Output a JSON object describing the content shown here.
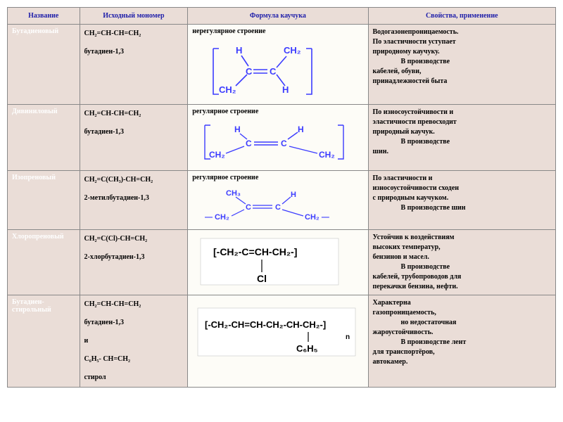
{
  "headers": {
    "c1": "Название",
    "c2": "Исходный мономер",
    "c3": "Формула каучука",
    "c4": "Свойства, применение"
  },
  "col_widths": {
    "c1": 100,
    "c2": 150,
    "c3": 250,
    "c4": 260
  },
  "colors": {
    "header_bg": "#eaddd7",
    "header_fg": "#2020aa",
    "name_fg": "#fefefe",
    "cell_bg": "#eaddd7",
    "formula_bg": "#fdfcf7",
    "border": "#888888",
    "svg_blue": "#3b3bff",
    "svg_black": "#000000"
  },
  "rows": [
    {
      "name": "Бутадиеновый",
      "monomer_formula": "CH₂=CH-CH=CH₂",
      "monomer_name": "бутадиен-1,3",
      "structure_label": "нерегулярное строение",
      "svg_kind": "butadiene_irregular",
      "props_line1": "Водогазонепроницаемость.",
      "props_line2": "По эластичности уступает",
      "props_line3": "природному каучуку.",
      "props_line4": "В производстве",
      "props_line5": "кабелей, обуви,",
      "props_line6": "принадлежностей быта"
    },
    {
      "name": "Дивиниловый",
      "monomer_formula": "CH₂=CH-CH=CH₂",
      "monomer_name": "бутадиен-1,3",
      "structure_label": "регулярное строение",
      "svg_kind": "divinyl_regular",
      "props_line1": "По износоустойчивости и",
      "props_line2": "эластичности превосходит",
      "props_line3": "природный каучук.",
      "props_line4": "В производстве",
      "props_line5": "шин.",
      "props_line6": ""
    },
    {
      "name": "Изопреновый",
      "monomer_formula": "CH₂=C(CH₃)-CH=CH₂",
      "monomer_name": "2-метилбутадиен-1,3",
      "structure_label": "регулярное строение",
      "svg_kind": "isoprene",
      "props_line1": "По эластичности и",
      "props_line2": "износоустойчивости сходен",
      "props_line3": "с природным каучуком.",
      "props_line4": "В производстве шин",
      "props_line5": "",
      "props_line6": ""
    },
    {
      "name": "Хлоропреновый",
      "monomer_formula": "CH₂=C(Cl)-CH=CH₂",
      "monomer_name": "2-хлорбутадиен-1,3",
      "structure_label": "",
      "svg_kind": "chloroprene",
      "props_line1": "Устойчив к воздействиям",
      "props_line2": "высоких температур,",
      "props_line3": "бензинов и масел.",
      "props_line4": "В производстве",
      "props_line5": "кабелей, трубопроводов для",
      "props_line6": "перекачки бензина, нефти."
    },
    {
      "name": "Бутадиен-стирольный",
      "monomer_formula": "CH₂=CH-CH=CH₂",
      "monomer_name": "бутадиен-1,3",
      "monomer_extra1": "и",
      "monomer_extra2": "C₆H₅- CH=CH₂",
      "monomer_extra3": "стирол",
      "structure_label": "",
      "svg_kind": "styrene",
      "props_line1": "Характерна",
      "props_line2": "газопроницаемость,",
      "props_line3": "но недостаточная",
      "props_line4": "жароустойчивость.",
      "props_line5": "В производстве лент",
      "props_line6": "для транспортёров,",
      "props_line7": "автокамер."
    }
  ],
  "svg_text": {
    "H": "H",
    "CH2": "CH₂",
    "CH3": "CH₃",
    "C": "C",
    "Cl": "Cl",
    "chloro_main": "[-CH₂-C=CH-CH₂-]",
    "styrene_main": "[-CH₂-CH=CH-CH₂-CH-CH₂-]",
    "styrene_sub": "C₆H₅",
    "n": "n"
  },
  "typography": {
    "body_fontsize": 11,
    "header_fontsize": 10,
    "cell_fontsize": 10,
    "sub_fontsize": 8,
    "font_family": "Times New Roman"
  }
}
